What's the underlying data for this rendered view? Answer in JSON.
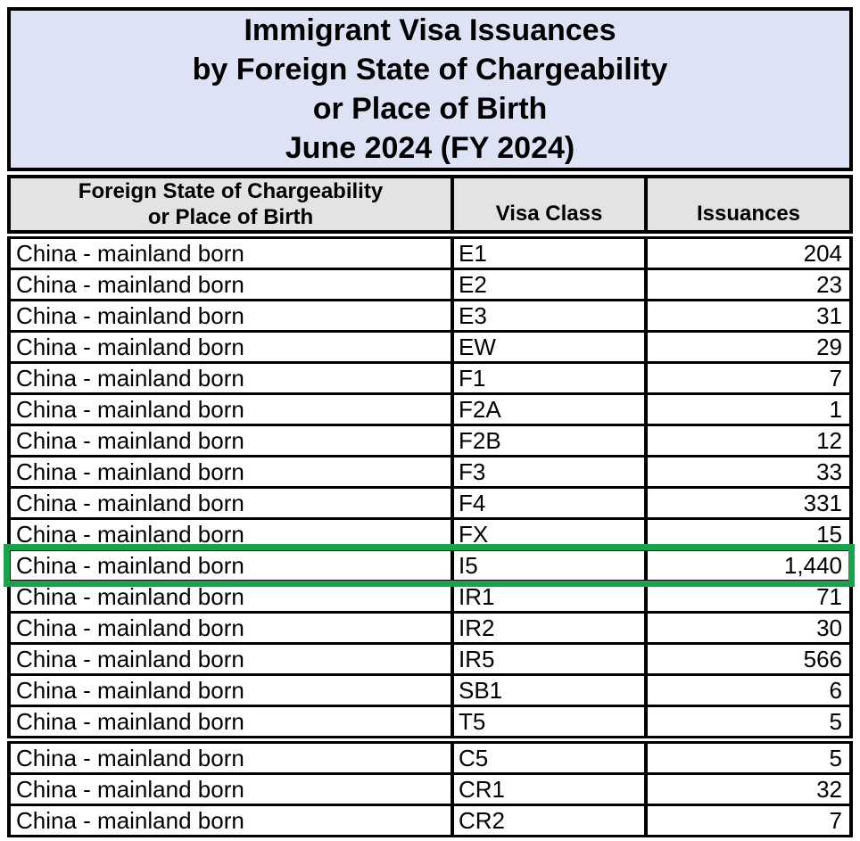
{
  "title": {
    "lines": [
      "Immigrant Visa Issuances",
      "by Foreign State of Chargeability",
      "or Place of Birth",
      "June 2024 (FY 2024)"
    ]
  },
  "table": {
    "headers": {
      "col1_line1": "Foreign State of Chargeability",
      "col1_line2": "or Place of Birth",
      "col2": "Visa Class",
      "col3": "Issuances"
    },
    "rows": [
      {
        "state": "China - mainland born",
        "visa_class": "E1",
        "issuances": "204",
        "highlighted": false,
        "section_start": false
      },
      {
        "state": "China - mainland born",
        "visa_class": "E2",
        "issuances": "23",
        "highlighted": false,
        "section_start": false
      },
      {
        "state": "China - mainland born",
        "visa_class": "E3",
        "issuances": "31",
        "highlighted": false,
        "section_start": false
      },
      {
        "state": "China - mainland born",
        "visa_class": "EW",
        "issuances": "29",
        "highlighted": false,
        "section_start": false
      },
      {
        "state": "China - mainland born",
        "visa_class": "F1",
        "issuances": "7",
        "highlighted": false,
        "section_start": false
      },
      {
        "state": "China - mainland born",
        "visa_class": "F2A",
        "issuances": "1",
        "highlighted": false,
        "section_start": false
      },
      {
        "state": "China - mainland born",
        "visa_class": "F2B",
        "issuances": "12",
        "highlighted": false,
        "section_start": false
      },
      {
        "state": "China - mainland born",
        "visa_class": "F3",
        "issuances": "33",
        "highlighted": false,
        "section_start": false
      },
      {
        "state": "China - mainland born",
        "visa_class": "F4",
        "issuances": "331",
        "highlighted": false,
        "section_start": false
      },
      {
        "state": "China - mainland born",
        "visa_class": "FX",
        "issuances": "15",
        "highlighted": false,
        "section_start": false
      },
      {
        "state": "China - mainland born",
        "visa_class": "I5",
        "issuances": "1,440",
        "highlighted": true,
        "section_start": false
      },
      {
        "state": "China - mainland born",
        "visa_class": "IR1",
        "issuances": "71",
        "highlighted": false,
        "section_start": false
      },
      {
        "state": "China - mainland born",
        "visa_class": "IR2",
        "issuances": "30",
        "highlighted": false,
        "section_start": false
      },
      {
        "state": "China - mainland born",
        "visa_class": "IR5",
        "issuances": "566",
        "highlighted": false,
        "section_start": false
      },
      {
        "state": "China - mainland born",
        "visa_class": "SB1",
        "issuances": "6",
        "highlighted": false,
        "section_start": false
      },
      {
        "state": "China - mainland born",
        "visa_class": "T5",
        "issuances": "5",
        "highlighted": false,
        "section_start": false
      },
      {
        "state": "China - mainland born",
        "visa_class": "C5",
        "issuances": "5",
        "highlighted": false,
        "section_start": true
      },
      {
        "state": "China - mainland born",
        "visa_class": "CR1",
        "issuances": "32",
        "highlighted": false,
        "section_start": false
      },
      {
        "state": "China - mainland born",
        "visa_class": "CR2",
        "issuances": "7",
        "highlighted": false,
        "section_start": false
      }
    ]
  },
  "colors": {
    "title_bg": "#dde3f5",
    "header_bg": "#e3e3e3",
    "border": "#000000",
    "highlight": "#18a24b"
  }
}
